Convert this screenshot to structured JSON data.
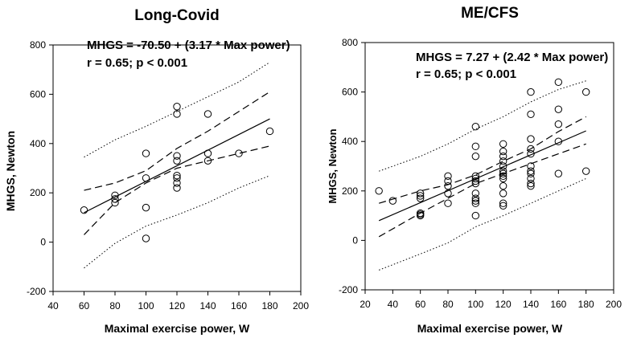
{
  "chart_data": [
    {
      "type": "scatter",
      "title": "Long-Covid",
      "xlabel": "Maximal exercise power, W",
      "ylabel": "MHGS, Newton",
      "xlim": [
        40,
        200
      ],
      "ylim": [
        -200,
        800
      ],
      "xticks": [
        40,
        60,
        80,
        100,
        120,
        140,
        160,
        180,
        200
      ],
      "yticks": [
        -200,
        0,
        200,
        400,
        600,
        800
      ],
      "annotation_line1": "MHGS = -70.50 + (3.17 * Max power)",
      "annotation_line2": "r = 0.65; p < 0.001",
      "grid": false,
      "regression": {
        "intercept": -70.5,
        "slope": 3.17,
        "x_range": [
          60,
          180
        ]
      },
      "confidence_band": {
        "x": [
          60,
          80,
          100,
          120,
          140,
          160,
          180
        ],
        "lower": [
          30,
          160,
          240,
          300,
          330,
          360,
          390
        ],
        "upper": [
          210,
          240,
          290,
          380,
          450,
          530,
          610
        ]
      },
      "prediction_band": {
        "x": [
          60,
          80,
          100,
          120,
          140,
          160,
          180
        ],
        "lower": [
          -105,
          -5,
          65,
          110,
          160,
          220,
          270
        ],
        "upper": [
          345,
          415,
          470,
          530,
          590,
          650,
          730
        ]
      },
      "x": [
        60,
        80,
        80,
        80,
        100,
        100,
        100,
        100,
        120,
        120,
        120,
        120,
        120,
        120,
        120,
        120,
        140,
        140,
        140,
        160,
        180
      ],
      "y": [
        130,
        190,
        175,
        160,
        360,
        260,
        140,
        15,
        550,
        520,
        350,
        330,
        270,
        260,
        240,
        220,
        520,
        360,
        330,
        360,
        450
      ]
    },
    {
      "type": "scatter",
      "title": "ME/CFS",
      "xlabel": "Maximal exercise power, W",
      "ylabel": "MHGS, Newton",
      "xlim": [
        20,
        200
      ],
      "ylim": [
        -200,
        800
      ],
      "xticks": [
        20,
        40,
        60,
        80,
        100,
        120,
        140,
        160,
        180,
        200
      ],
      "yticks": [
        -200,
        0,
        200,
        400,
        600,
        800
      ],
      "annotation_line1": "MHGS = 7.27 + (2.42 * Max power)",
      "annotation_line2": "r = 0.65; p < 0.001",
      "grid": false,
      "regression": {
        "intercept": 7.27,
        "slope": 2.42,
        "x_range": [
          30,
          180
        ]
      },
      "confidence_band": {
        "x": [
          30,
          60,
          80,
          100,
          120,
          140,
          160,
          180
        ],
        "lower": [
          15,
          110,
          170,
          230,
          270,
          310,
          350,
          390
        ],
        "upper": [
          150,
          200,
          225,
          265,
          320,
          370,
          440,
          500
        ]
      },
      "prediction_band": {
        "x": [
          30,
          60,
          80,
          100,
          120,
          140,
          160,
          180
        ],
        "lower": [
          -120,
          -55,
          -10,
          55,
          100,
          150,
          200,
          250
        ],
        "upper": [
          280,
          340,
          390,
          450,
          500,
          560,
          610,
          645
        ]
      },
      "x": [
        30,
        40,
        60,
        60,
        60,
        60,
        60,
        60,
        80,
        80,
        80,
        80,
        80,
        100,
        100,
        100,
        100,
        100,
        100,
        100,
        100,
        100,
        100,
        100,
        100,
        120,
        120,
        120,
        120,
        120,
        120,
        120,
        120,
        120,
        120,
        120,
        120,
        120,
        140,
        140,
        140,
        140,
        140,
        140,
        140,
        140,
        140,
        140,
        140,
        160,
        160,
        160,
        160,
        160,
        180,
        180
      ],
      "y": [
        200,
        160,
        190,
        180,
        170,
        110,
        100,
        105,
        260,
        240,
        220,
        190,
        150,
        460,
        380,
        340,
        260,
        250,
        240,
        230,
        190,
        170,
        160,
        150,
        100,
        390,
        360,
        340,
        320,
        300,
        280,
        270,
        260,
        250,
        220,
        190,
        150,
        140,
        600,
        510,
        410,
        370,
        350,
        300,
        280,
        270,
        250,
        230,
        220,
        640,
        530,
        470,
        400,
        270,
        600,
        280
      ]
    }
  ]
}
